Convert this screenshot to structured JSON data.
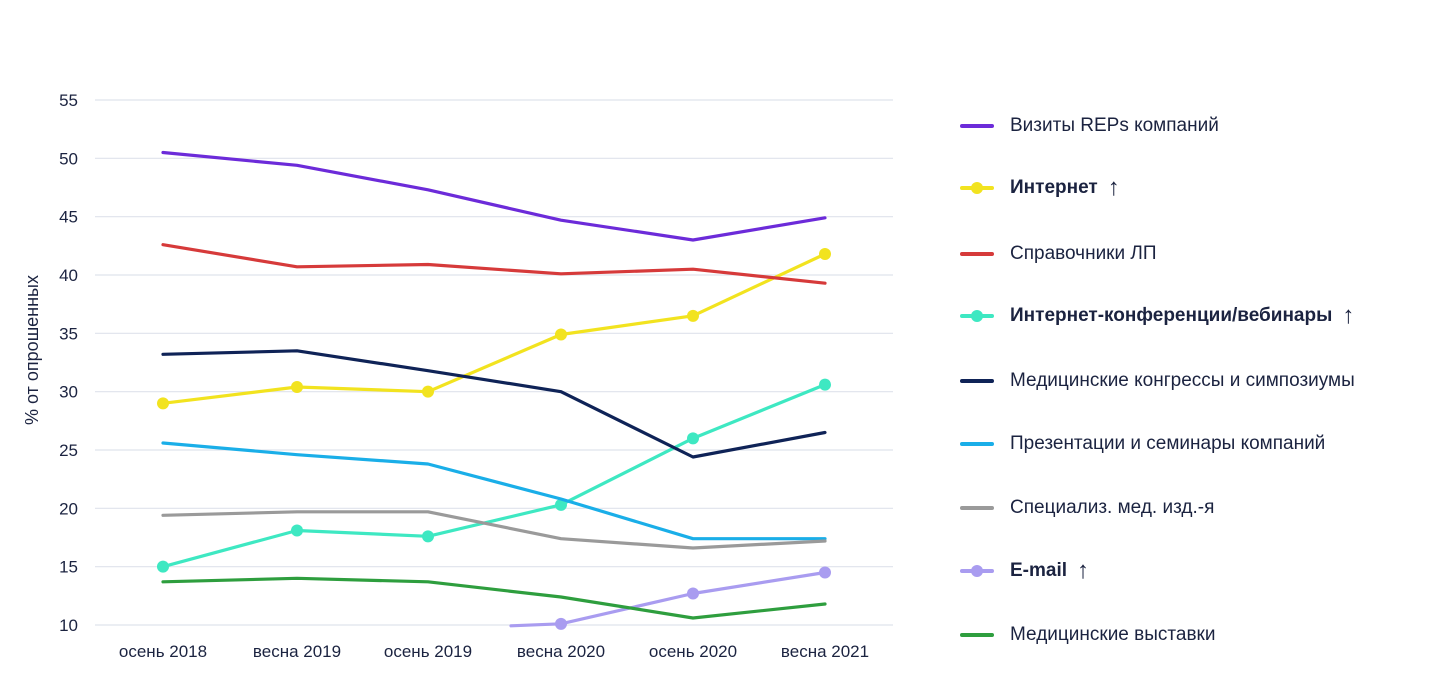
{
  "chart_data": {
    "type": "line",
    "categories": [
      "осень 2018",
      "весна 2019",
      "осень 2019",
      "весна 2020",
      "осень 2020",
      "весна 2021"
    ],
    "ylabel": "% от опрошенных",
    "ylim": [
      10,
      55
    ],
    "yticks": [
      10,
      15,
      20,
      25,
      30,
      35,
      40,
      45,
      50,
      55
    ],
    "grid": true,
    "legend_position": "right",
    "series": [
      {
        "name": "Визиты REPs компаний",
        "color": "#6c2bd9",
        "markers": false,
        "bold": false,
        "trend_up": false,
        "values": [
          50.5,
          49.4,
          47.3,
          44.7,
          43.0,
          44.9
        ]
      },
      {
        "name": "Интернет",
        "color": "#f2e31f",
        "markers": true,
        "bold": true,
        "trend_up": true,
        "values": [
          29.0,
          30.4,
          30.0,
          34.9,
          36.5,
          41.8
        ]
      },
      {
        "name": "Справочники ЛП",
        "color": "#d63a3a",
        "markers": false,
        "bold": false,
        "trend_up": false,
        "values": [
          42.6,
          40.7,
          40.9,
          40.1,
          40.5,
          39.3
        ]
      },
      {
        "name": "Интернет-конференции/вебинары",
        "color": "#3ee8c2",
        "markers": true,
        "bold": true,
        "trend_up": true,
        "values": [
          15.0,
          18.1,
          17.6,
          20.3,
          26.0,
          30.6
        ]
      },
      {
        "name": "Медицинские конгрессы и симпозиумы",
        "color": "#0f2357",
        "markers": false,
        "bold": false,
        "trend_up": false,
        "values": [
          33.2,
          33.5,
          31.8,
          30.0,
          24.4,
          26.5
        ]
      },
      {
        "name": "Презентации и семинары компаний",
        "color": "#1aaee8",
        "markers": false,
        "bold": false,
        "trend_up": false,
        "values": [
          25.6,
          24.6,
          23.8,
          20.8,
          17.4,
          17.4
        ]
      },
      {
        "name": "Специализ. мед. изд.-я",
        "color": "#9a9a9a",
        "markers": false,
        "bold": false,
        "trend_up": false,
        "values": [
          19.4,
          19.7,
          19.7,
          17.4,
          16.6,
          17.2
        ]
      },
      {
        "name": "E-mail",
        "color": "#a99cf0",
        "markers": true,
        "bold": true,
        "trend_up": true,
        "values": [
          null,
          null,
          null,
          10.1,
          12.7,
          14.5
        ]
      },
      {
        "name": "Медицинские выставки",
        "color": "#2e9e3e",
        "markers": false,
        "bold": false,
        "trend_up": false,
        "values": [
          13.7,
          14.0,
          13.7,
          12.4,
          10.6,
          11.8
        ]
      }
    ]
  },
  "trend_arrow": "↑"
}
